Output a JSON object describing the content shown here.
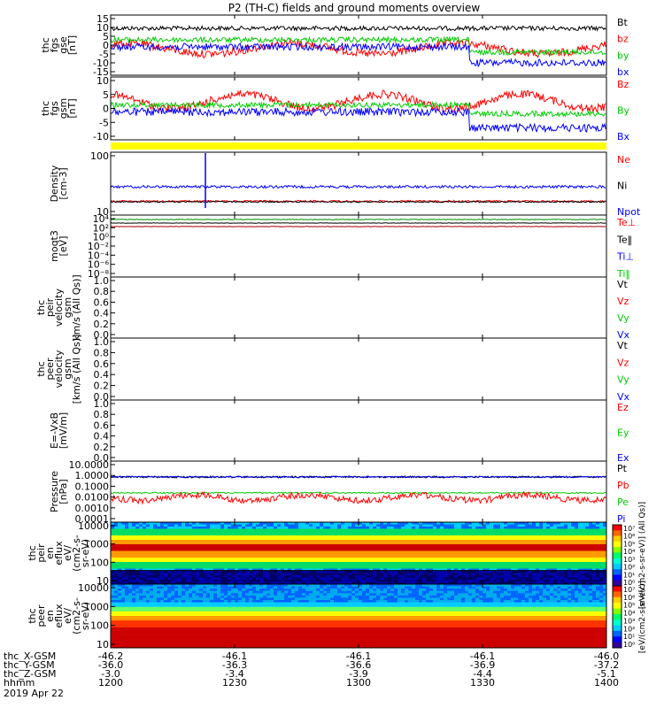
{
  "title": "P2 (TH-C) fields and ground moments overview",
  "chart_data": {
    "type": "line",
    "panels": [
      {
        "id": "fgs_gse",
        "ylabel": [
          "thc",
          "fgs",
          "gse",
          "[nT]"
        ],
        "yticks": [
          "15",
          "10",
          "5",
          "0",
          "-5",
          "-10",
          "-15"
        ],
        "yrange": [
          -15,
          15
        ],
        "legend": [
          {
            "name": "Bt",
            "color": "#000000"
          },
          {
            "name": "bz",
            "color": "#ff0000"
          },
          {
            "name": "by",
            "color": "#00cc00"
          },
          {
            "name": "bx",
            "color": "#0000ff"
          }
        ]
      },
      {
        "id": "fgs_gsm",
        "ylabel": [
          "thc",
          "fgs",
          "gsm",
          "[nT]"
        ],
        "yticks": [
          "10",
          "5",
          "0",
          "-5",
          "-10"
        ],
        "yrange": [
          -12,
          11
        ],
        "legend": [
          {
            "name": "Bz",
            "color": "#ff0000"
          },
          {
            "name": "By",
            "color": "#00cc00"
          },
          {
            "name": "Bx",
            "color": "#0000ff"
          }
        ]
      },
      {
        "id": "density",
        "ylabel": [
          "Density",
          "[cm-3]"
        ],
        "yticks": [
          "100",
          "10"
        ],
        "scale": "log",
        "legend": [
          {
            "name": "Ne",
            "color": "#ff0000"
          },
          {
            "name": "Ni",
            "color": "#000000"
          },
          {
            "name": "Npot",
            "color": "#0000ff"
          }
        ]
      },
      {
        "id": "temperature",
        "ylabel": [
          "moqt3",
          "[eV]"
        ],
        "yticks": [
          "10⁴",
          "10²",
          "10⁰",
          "10⁻²",
          "10⁻⁴",
          "10⁻⁶",
          "10⁻⁸"
        ],
        "scale": "log",
        "legend": [
          {
            "name": "Te⊥",
            "color": "#ff0000"
          },
          {
            "name": "Te‖",
            "color": "#000000"
          },
          {
            "name": "Ti⊥",
            "color": "#0000ff"
          },
          {
            "name": "Ti‖",
            "color": "#00cc00"
          }
        ]
      },
      {
        "id": "peir_velocity",
        "ylabel": [
          "thc",
          "peir",
          "velocity",
          "gsm",
          "km/s (All Qs)]"
        ],
        "yticks": [
          "1.0",
          "0.8",
          "0.6",
          "0.4",
          "0.2",
          "0.0"
        ],
        "legend": [
          {
            "name": "Vt",
            "color": "#000000"
          },
          {
            "name": "Vz",
            "color": "#ff0000"
          },
          {
            "name": "Vy",
            "color": "#00cc00"
          },
          {
            "name": "Vx",
            "color": "#0000ff"
          }
        ]
      },
      {
        "id": "peer_velocity",
        "ylabel": [
          "thc",
          "peer",
          "velocity",
          "gsm",
          "[km/s (All Qs)]"
        ],
        "yticks": [
          "1.0",
          "0.8",
          "0.6",
          "0.4",
          "0.2",
          "0.0"
        ],
        "legend": [
          {
            "name": "Vt",
            "color": "#000000"
          },
          {
            "name": "Vz",
            "color": "#ff0000"
          },
          {
            "name": "Vy",
            "color": "#00cc00"
          },
          {
            "name": "Vx",
            "color": "#0000ff"
          }
        ]
      },
      {
        "id": "efield",
        "ylabel": [
          "E=-VxB",
          "[mV/m]"
        ],
        "yticks": [
          "1.0",
          "0.8",
          "0.6",
          "0.4",
          "0.2",
          "0.0"
        ],
        "legend": [
          {
            "name": "Ez",
            "color": "#ff0000"
          },
          {
            "name": "Ey",
            "color": "#00cc00"
          },
          {
            "name": "Ex",
            "color": "#0000ff"
          }
        ]
      },
      {
        "id": "pressure",
        "ylabel": [
          "Pressure",
          "[nPa]"
        ],
        "yticks": [
          "10.0000",
          "1.0000",
          "0.1000",
          "0.0100",
          "0.0010",
          "0.0001"
        ],
        "scale": "log",
        "legend": [
          {
            "name": "Pt",
            "color": "#000000"
          },
          {
            "name": "Pb",
            "color": "#ff0000"
          },
          {
            "name": "Pe",
            "color": "#00cc00"
          },
          {
            "name": "Pi",
            "color": "#0000ff"
          }
        ]
      },
      {
        "id": "peir_spec",
        "ylabel": [
          "thc",
          "peir",
          "en",
          "eflux",
          "eV/",
          "(cm2-s-",
          "sr-eV)"
        ],
        "yticks": [
          "10000",
          "1000",
          "100",
          "10"
        ],
        "scale": "log",
        "spectrogram": true
      },
      {
        "id": "peer_spec",
        "ylabel": [
          "thc",
          "peer",
          "en",
          "eflux",
          "eV/",
          "(cm2-s-",
          "sr-eV)"
        ],
        "yticks": [
          "10000",
          "1000",
          "100",
          "10"
        ],
        "scale": "log",
        "spectrogram": true
      }
    ],
    "colorbars": [
      {
        "ticks": [
          "10⁷",
          "10⁶",
          "10⁵",
          "10⁴",
          "10³",
          "10²",
          "10¹",
          "10⁰"
        ],
        "label": "[eV/(cm2-s-sr-eV)] (All Qs)]"
      },
      {
        "ticks": [
          "10⁷",
          "10⁶",
          "10⁵",
          "10⁴",
          "10³",
          "10²",
          "10¹",
          "10⁰"
        ],
        "label": "[eV/(cm2-s-sr-eV)]"
      }
    ],
    "xaxis": {
      "rows": [
        {
          "label": "thc_X-GSM",
          "values": [
            "-46.2",
            "-46.1",
            "-46.1",
            "-46.1",
            "-46.0"
          ]
        },
        {
          "label": "thc_Y-GSM",
          "values": [
            "-36.0",
            "-36.3",
            "-36.6",
            "-36.9",
            "-37.2"
          ]
        },
        {
          "label": "thc_Z-GSM",
          "values": [
            "-3.0",
            "-3.4",
            "-3.9",
            "-4.4",
            "-5.1"
          ]
        },
        {
          "label": "hhmm",
          "values": [
            "1200",
            "1230",
            "1300",
            "1330",
            "1400"
          ]
        }
      ],
      "date": "2019 Apr 22"
    }
  }
}
